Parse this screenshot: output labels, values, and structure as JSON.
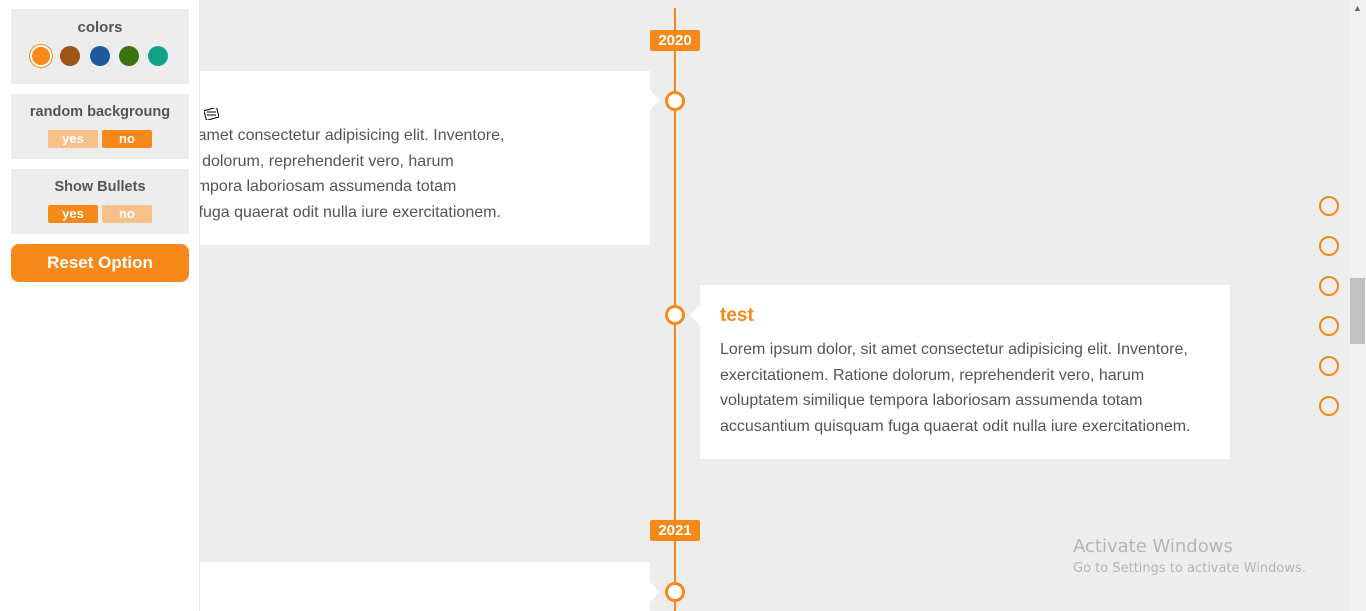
{
  "options_panel": {
    "colors_label": "colors",
    "swatches": [
      {
        "name": "orange",
        "color": "#f7891a",
        "active": true
      },
      {
        "name": "brown",
        "color": "#9c5417"
      },
      {
        "name": "blue",
        "color": "#1d5aa0"
      },
      {
        "name": "green",
        "color": "#3a7413"
      },
      {
        "name": "teal",
        "color": "#11a189"
      }
    ],
    "random_background": {
      "label": "random backgroung",
      "yes": "yes",
      "no": "no",
      "selected": "no"
    },
    "show_bullets": {
      "label": "Show Bullets",
      "yes": "yes",
      "no": "no",
      "selected": "yes"
    },
    "reset_label": "Reset Option"
  },
  "timeline": {
    "years": [
      "2020",
      "2021"
    ],
    "card_left": {
      "lines": [
        "psum dolor, sit amet consectetur adipisicing elit. Inventore,",
        "ionem. Ratione dolorum, reprehenderit vero, harum",
        "em similique tempora laboriosam assumenda totam",
        "tium quisquam fuga quaerat odit nulla iure exercitationem."
      ]
    },
    "card_right": {
      "title": "test",
      "lines": [
        "Lorem ipsum dolor, sit amet consectetur adipisicing elit. Inventore,",
        "exercitationem. Ratione dolorum, reprehenderit vero, harum",
        "voluptatem similique tempora laboriosam assumenda totam",
        "accusantium quisquam fuga quaerat odit nulla iure exercitationem."
      ]
    }
  },
  "nav_dots_count": 6,
  "watermark": {
    "line1": "Activate Windows",
    "line2": "Go to Settings to activate Windows."
  },
  "accent_color": "#f7891a"
}
